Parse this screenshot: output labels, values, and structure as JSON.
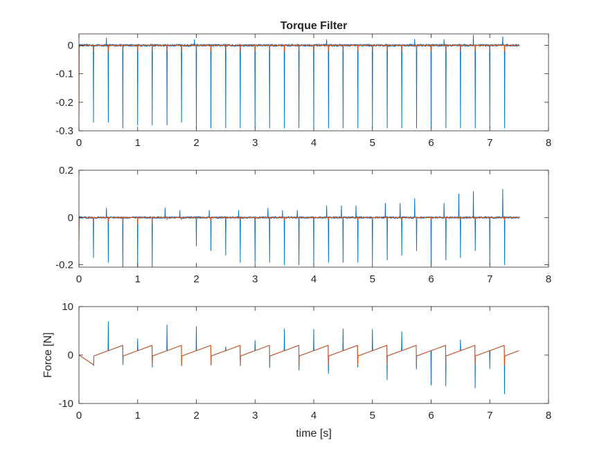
{
  "colors": {
    "series_1": "#0072BD",
    "series_2": "#D95319",
    "axes": "#262626"
  },
  "chart_data": [
    {
      "type": "line",
      "title": "Torque Filter",
      "xlabel": "",
      "ylabel": "",
      "xlim": [
        0,
        8
      ],
      "ylim": [
        -0.3,
        0.04
      ],
      "xticks": [
        0,
        1,
        2,
        3,
        4,
        5,
        6,
        7,
        8
      ],
      "yticks": [
        -0.3,
        -0.2,
        -0.1,
        0
      ],
      "ytick_labels": [
        "-0.3",
        "-0.2",
        "-0.1",
        "0"
      ],
      "grid": false,
      "x_range": [
        0,
        7.5
      ],
      "series": [
        {
          "color": "#0072BD",
          "baseline": 0,
          "noise": 0.004,
          "spikes": [
            {
              "x": 0.25,
              "v": -0.27
            },
            {
              "x": 0.5,
              "v": -0.27
            },
            {
              "x": 0.75,
              "v": -0.29
            },
            {
              "x": 1.0,
              "v": -0.28
            },
            {
              "x": 1.25,
              "v": -0.28
            },
            {
              "x": 1.5,
              "v": -0.28
            },
            {
              "x": 1.75,
              "v": -0.27
            },
            {
              "x": 2.0,
              "v": -0.29
            },
            {
              "x": 2.25,
              "v": -0.29
            },
            {
              "x": 2.5,
              "v": -0.29
            },
            {
              "x": 2.75,
              "v": -0.29
            },
            {
              "x": 3.0,
              "v": -0.29
            },
            {
              "x": 3.25,
              "v": -0.29
            },
            {
              "x": 3.5,
              "v": -0.29
            },
            {
              "x": 3.75,
              "v": -0.29
            },
            {
              "x": 4.0,
              "v": -0.29
            },
            {
              "x": 4.25,
              "v": -0.29
            },
            {
              "x": 4.5,
              "v": -0.29
            },
            {
              "x": 4.75,
              "v": -0.29
            },
            {
              "x": 5.0,
              "v": -0.29
            },
            {
              "x": 5.25,
              "v": -0.29
            },
            {
              "x": 5.5,
              "v": -0.29
            },
            {
              "x": 5.75,
              "v": -0.29
            },
            {
              "x": 6.0,
              "v": -0.29
            },
            {
              "x": 6.25,
              "v": -0.29
            },
            {
              "x": 6.5,
              "v": -0.29
            },
            {
              "x": 6.75,
              "v": -0.29
            },
            {
              "x": 7.0,
              "v": -0.29
            },
            {
              "x": 7.25,
              "v": -0.29
            }
          ],
          "bumps": [
            {
              "x": 0.47,
              "v": 0.025
            },
            {
              "x": 1.97,
              "v": 0.02
            },
            {
              "x": 4.22,
              "v": 0.02
            },
            {
              "x": 5.72,
              "v": 0.02
            },
            {
              "x": 6.22,
              "v": 0.02
            },
            {
              "x": 6.72,
              "v": 0.035
            },
            {
              "x": 7.22,
              "v": 0.03
            }
          ]
        },
        {
          "color": "#D95319",
          "baseline": 0,
          "noise": 0.0015,
          "spikes": [
            {
              "x": 0.0,
              "v": -0.26
            },
            {
              "x": 0.25,
              "v": -0.02
            },
            {
              "x": 0.5,
              "v": -0.02
            },
            {
              "x": 0.75,
              "v": -0.02
            },
            {
              "x": 1.0,
              "v": -0.02
            },
            {
              "x": 1.25,
              "v": -0.02
            },
            {
              "x": 1.5,
              "v": -0.02
            },
            {
              "x": 1.75,
              "v": -0.02
            },
            {
              "x": 2.0,
              "v": -0.02
            },
            {
              "x": 2.25,
              "v": -0.02
            },
            {
              "x": 2.5,
              "v": -0.02
            },
            {
              "x": 2.75,
              "v": -0.02
            },
            {
              "x": 3.0,
              "v": -0.02
            },
            {
              "x": 3.25,
              "v": -0.02
            },
            {
              "x": 3.5,
              "v": -0.02
            },
            {
              "x": 3.75,
              "v": -0.02
            },
            {
              "x": 4.0,
              "v": -0.02
            },
            {
              "x": 4.25,
              "v": -0.02
            },
            {
              "x": 4.5,
              "v": -0.02
            },
            {
              "x": 4.75,
              "v": -0.02
            },
            {
              "x": 5.0,
              "v": -0.02
            },
            {
              "x": 5.25,
              "v": -0.02
            },
            {
              "x": 5.5,
              "v": -0.02
            },
            {
              "x": 5.75,
              "v": -0.02
            },
            {
              "x": 6.0,
              "v": -0.02
            },
            {
              "x": 6.25,
              "v": -0.02
            },
            {
              "x": 6.5,
              "v": -0.02
            },
            {
              "x": 6.75,
              "v": -0.02
            },
            {
              "x": 7.0,
              "v": -0.02
            },
            {
              "x": 7.25,
              "v": -0.02
            }
          ],
          "bumps": [
            {
              "x": 0.01,
              "v": 0.04
            }
          ]
        }
      ]
    },
    {
      "type": "line",
      "title": "",
      "xlabel": "",
      "ylabel": "",
      "xlim": [
        0,
        8
      ],
      "ylim": [
        -0.21,
        0.2
      ],
      "xticks": [
        0,
        1,
        2,
        3,
        4,
        5,
        6,
        7,
        8
      ],
      "yticks": [
        -0.2,
        0,
        0.2
      ],
      "ytick_labels": [
        "-0.2",
        "0",
        "0.2"
      ],
      "grid": false,
      "x_range": [
        0,
        7.5
      ],
      "series": [
        {
          "color": "#0072BD",
          "baseline": 0,
          "noise": 0.004,
          "spikes": [
            {
              "x": 0.25,
              "v": -0.17
            },
            {
              "x": 0.5,
              "v": -0.19
            },
            {
              "x": 0.75,
              "v": -0.21
            },
            {
              "x": 1.0,
              "v": -0.21
            },
            {
              "x": 1.25,
              "v": -0.21
            },
            {
              "x": 2.0,
              "v": -0.12
            },
            {
              "x": 2.25,
              "v": -0.14
            },
            {
              "x": 2.5,
              "v": -0.16
            },
            {
              "x": 2.75,
              "v": -0.19
            },
            {
              "x": 3.0,
              "v": -0.19
            },
            {
              "x": 3.25,
              "v": -0.19
            },
            {
              "x": 3.5,
              "v": -0.2
            },
            {
              "x": 3.75,
              "v": -0.2
            },
            {
              "x": 4.0,
              "v": -0.2
            },
            {
              "x": 4.25,
              "v": -0.19
            },
            {
              "x": 4.5,
              "v": -0.19
            },
            {
              "x": 4.75,
              "v": -0.19
            },
            {
              "x": 5.0,
              "v": -0.19
            },
            {
              "x": 5.25,
              "v": -0.18
            },
            {
              "x": 5.5,
              "v": -0.16
            },
            {
              "x": 5.75,
              "v": -0.14
            },
            {
              "x": 6.0,
              "v": -0.2
            },
            {
              "x": 6.25,
              "v": -0.18
            },
            {
              "x": 6.5,
              "v": -0.17
            },
            {
              "x": 6.75,
              "v": -0.14
            },
            {
              "x": 7.0,
              "v": -0.2
            },
            {
              "x": 7.25,
              "v": -0.2
            }
          ],
          "bumps": [
            {
              "x": 0.47,
              "v": 0.04
            },
            {
              "x": 1.47,
              "v": 0.04
            },
            {
              "x": 1.72,
              "v": 0.03
            },
            {
              "x": 2.22,
              "v": 0.03
            },
            {
              "x": 2.72,
              "v": 0.03
            },
            {
              "x": 3.22,
              "v": 0.04
            },
            {
              "x": 3.47,
              "v": 0.03
            },
            {
              "x": 3.72,
              "v": 0.03
            },
            {
              "x": 4.22,
              "v": 0.05
            },
            {
              "x": 4.47,
              "v": 0.05
            },
            {
              "x": 4.72,
              "v": 0.05
            },
            {
              "x": 5.22,
              "v": 0.06
            },
            {
              "x": 5.47,
              "v": 0.06
            },
            {
              "x": 5.72,
              "v": 0.08
            },
            {
              "x": 6.22,
              "v": 0.06
            },
            {
              "x": 6.47,
              "v": 0.1
            },
            {
              "x": 6.72,
              "v": 0.11
            },
            {
              "x": 7.22,
              "v": 0.12
            }
          ]
        },
        {
          "color": "#D95319",
          "baseline": 0,
          "noise": 0.0015,
          "spikes": [
            {
              "x": 0.0,
              "v": -0.1
            },
            {
              "x": 0.25,
              "v": -0.02
            },
            {
              "x": 0.5,
              "v": -0.02
            },
            {
              "x": 0.75,
              "v": -0.03
            },
            {
              "x": 1.0,
              "v": -0.03
            },
            {
              "x": 1.25,
              "v": -0.03
            },
            {
              "x": 1.5,
              "v": -0.01
            },
            {
              "x": 1.75,
              "v": -0.01
            },
            {
              "x": 2.0,
              "v": -0.01
            },
            {
              "x": 2.25,
              "v": -0.01
            },
            {
              "x": 2.5,
              "v": -0.01
            },
            {
              "x": 2.75,
              "v": -0.01
            },
            {
              "x": 3.0,
              "v": -0.01
            },
            {
              "x": 3.25,
              "v": -0.01
            },
            {
              "x": 3.5,
              "v": -0.01
            },
            {
              "x": 3.75,
              "v": -0.01
            },
            {
              "x": 4.0,
              "v": -0.01
            },
            {
              "x": 4.25,
              "v": -0.01
            },
            {
              "x": 4.5,
              "v": -0.01
            },
            {
              "x": 4.75,
              "v": -0.01
            },
            {
              "x": 5.0,
              "v": -0.01
            },
            {
              "x": 5.25,
              "v": -0.01
            },
            {
              "x": 5.5,
              "v": -0.01
            },
            {
              "x": 5.75,
              "v": -0.01
            },
            {
              "x": 6.0,
              "v": -0.01
            },
            {
              "x": 6.25,
              "v": -0.01
            },
            {
              "x": 6.5,
              "v": -0.01
            },
            {
              "x": 6.75,
              "v": -0.01
            },
            {
              "x": 7.0,
              "v": -0.01
            },
            {
              "x": 7.25,
              "v": -0.01
            }
          ],
          "bumps": []
        }
      ]
    },
    {
      "type": "line",
      "title": "",
      "xlabel": "time [s]",
      "ylabel": "Force [N]",
      "xlim": [
        0,
        8
      ],
      "ylim": [
        -10,
        10
      ],
      "xticks": [
        0,
        1,
        2,
        3,
        4,
        5,
        6,
        7,
        8
      ],
      "yticks": [
        -10,
        0,
        10
      ],
      "ytick_labels": [
        "-10",
        "0",
        "10"
      ],
      "grid": false,
      "x_range": [
        0,
        7.5
      ],
      "sawtooth": {
        "period": 0.5,
        "phase_start": 0.25,
        "low": -2,
        "high": 2,
        "first_value": 0,
        "drop_down_at_quarter": true
      },
      "series": [
        {
          "color": "#0072BD",
          "spikes": [
            {
              "x": 0.25,
              "v": -2.2
            },
            {
              "x": 0.5,
              "v": 6.9
            },
            {
              "x": 0.75,
              "v": -2.0
            },
            {
              "x": 1.0,
              "v": 3.3
            },
            {
              "x": 1.25,
              "v": -2.5
            },
            {
              "x": 1.5,
              "v": 6.2
            },
            {
              "x": 1.75,
              "v": -2.2
            },
            {
              "x": 2.0,
              "v": 5.9
            },
            {
              "x": 2.25,
              "v": -2.1
            },
            {
              "x": 2.5,
              "v": 1.7
            },
            {
              "x": 2.75,
              "v": -2.2
            },
            {
              "x": 3.0,
              "v": 3.0
            },
            {
              "x": 3.25,
              "v": -2.6
            },
            {
              "x": 3.5,
              "v": 5.4
            },
            {
              "x": 3.75,
              "v": -3.1
            },
            {
              "x": 4.0,
              "v": 5.3
            },
            {
              "x": 4.25,
              "v": -3.8
            },
            {
              "x": 4.5,
              "v": 5.4
            },
            {
              "x": 4.75,
              "v": -2.5
            },
            {
              "x": 5.0,
              "v": 5.3
            },
            {
              "x": 5.25,
              "v": -5.1
            },
            {
              "x": 5.5,
              "v": 4.8
            },
            {
              "x": 5.75,
              "v": -2.9
            },
            {
              "x": 6.0,
              "v": -6.2
            },
            {
              "x": 6.25,
              "v": -6.4
            },
            {
              "x": 6.5,
              "v": 3.1
            },
            {
              "x": 6.75,
              "v": -6.8
            },
            {
              "x": 7.0,
              "v": -2.8
            },
            {
              "x": 7.25,
              "v": -8.0
            }
          ]
        },
        {
          "color": "#D95319",
          "spikes": []
        }
      ]
    }
  ]
}
